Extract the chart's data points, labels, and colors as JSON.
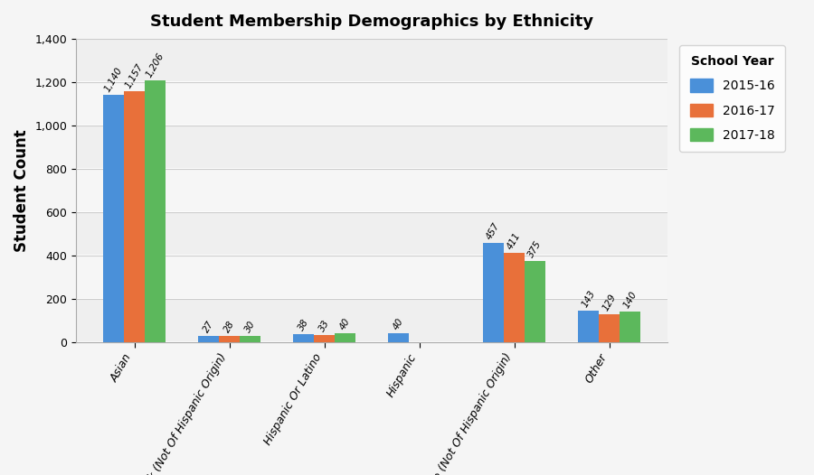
{
  "title": "Student Membership Demographics by Ethnicity",
  "ylabel": "Student Count",
  "categories": [
    "Asian",
    "Black (Not Of Hispanic Origin)",
    "Hispanic Or Latino",
    "Hispanic",
    "White (Not Of Hispanic Origin)",
    "Other"
  ],
  "school_years": [
    "2015-16",
    "2016-17",
    "2017-18"
  ],
  "colors": [
    "#4a90d9",
    "#e8703a",
    "#5cb85c"
  ],
  "values": {
    "2015-16": [
      1140,
      27,
      38,
      40,
      457,
      143
    ],
    "2016-17": [
      1157,
      28,
      33,
      0,
      411,
      129
    ],
    "2017-18": [
      1206,
      30,
      40,
      0,
      375,
      140
    ]
  },
  "ylim": [
    0,
    1400
  ],
  "yticks": [
    0,
    200,
    400,
    600,
    800,
    1000,
    1200,
    1400
  ],
  "legend_title": "School Year",
  "bar_width": 0.22,
  "annotation_fontsize": 7.5,
  "title_fontsize": 13,
  "label_fontsize": 12,
  "tick_label_fontsize": 9,
  "background_color": "#f5f5f5",
  "plot_bg_color": "#f5f5f5"
}
